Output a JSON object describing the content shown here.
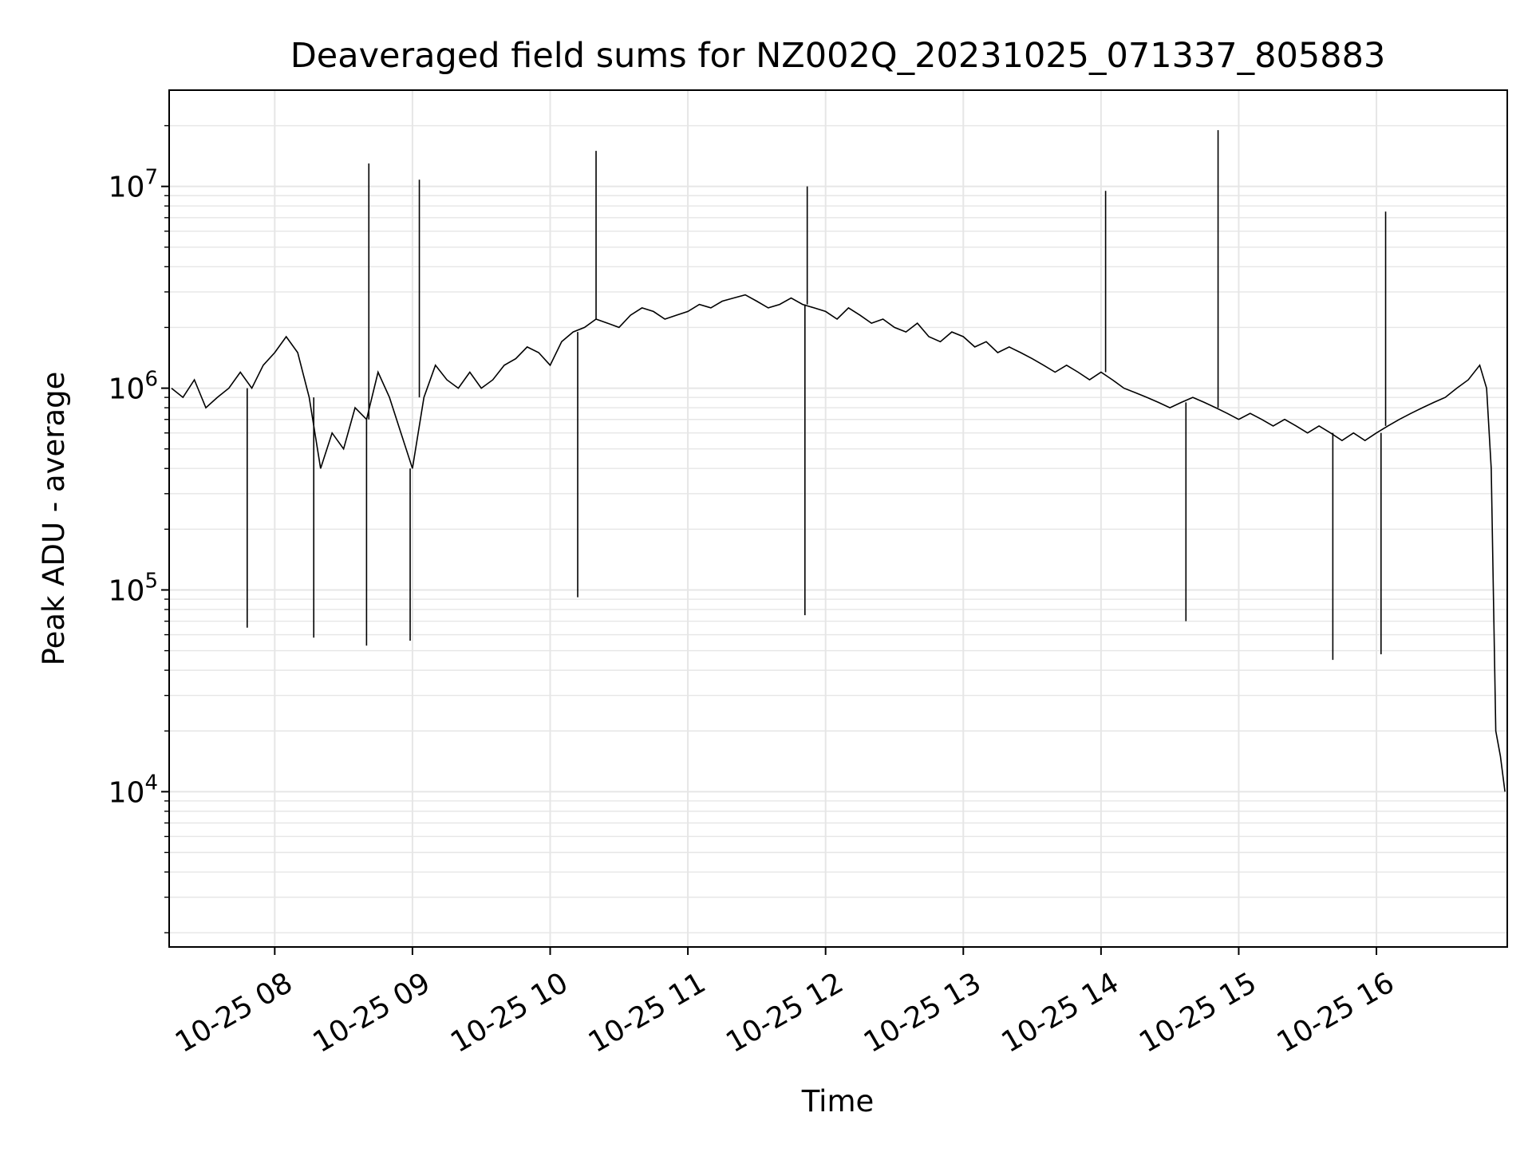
{
  "chart_data": {
    "type": "line",
    "title": "Deaveraged field sums for NZ002Q_20231025_071337_805883",
    "xlabel": "Time",
    "ylabel": "Peak ADU - average",
    "yscale": "log",
    "xlim": [
      "2023-10-25 07:14",
      "2023-10-25 16:57"
    ],
    "ylim": [
      1700,
      30000000
    ],
    "grid": true,
    "legend": "none",
    "line_color": "#000000",
    "grid_color": "#e6e6e6",
    "x_ticks": [
      {
        "time": "2023-10-25 08:00",
        "label": "10-25 08"
      },
      {
        "time": "2023-10-25 09:00",
        "label": "10-25 09"
      },
      {
        "time": "2023-10-25 10:00",
        "label": "10-25 10"
      },
      {
        "time": "2023-10-25 11:00",
        "label": "10-25 11"
      },
      {
        "time": "2023-10-25 12:00",
        "label": "10-25 12"
      },
      {
        "time": "2023-10-25 13:00",
        "label": "10-25 13"
      },
      {
        "time": "2023-10-25 14:00",
        "label": "10-25 14"
      },
      {
        "time": "2023-10-25 15:00",
        "label": "10-25 15"
      },
      {
        "time": "2023-10-25 16:00",
        "label": "10-25 16"
      }
    ],
    "y_ticks": [
      {
        "value": 10000,
        "base": "10",
        "exp": "4"
      },
      {
        "value": 100000,
        "base": "10",
        "exp": "5"
      },
      {
        "value": 1000000,
        "base": "10",
        "exp": "6"
      },
      {
        "value": 10000000,
        "base": "10",
        "exp": "7"
      }
    ],
    "series": [
      {
        "x": [
          "2023-10-25 07:15",
          "2023-10-25 07:20",
          "2023-10-25 07:25",
          "2023-10-25 07:30",
          "2023-10-25 07:35",
          "2023-10-25 07:40",
          "2023-10-25 07:45",
          "2023-10-25 07:50",
          "2023-10-25 07:55",
          "2023-10-25 08:00",
          "2023-10-25 08:05",
          "2023-10-25 08:10",
          "2023-10-25 08:15",
          "2023-10-25 08:20",
          "2023-10-25 08:25",
          "2023-10-25 08:30",
          "2023-10-25 08:35",
          "2023-10-25 08:40",
          "2023-10-25 08:45",
          "2023-10-25 08:50",
          "2023-10-25 08:55",
          "2023-10-25 09:00",
          "2023-10-25 09:05",
          "2023-10-25 09:10",
          "2023-10-25 09:15",
          "2023-10-25 09:20",
          "2023-10-25 09:25",
          "2023-10-25 09:30",
          "2023-10-25 09:35",
          "2023-10-25 09:40",
          "2023-10-25 09:45",
          "2023-10-25 09:50",
          "2023-10-25 09:55",
          "2023-10-25 10:00",
          "2023-10-25 10:05",
          "2023-10-25 10:10",
          "2023-10-25 10:15",
          "2023-10-25 10:20",
          "2023-10-25 10:25",
          "2023-10-25 10:30",
          "2023-10-25 10:35",
          "2023-10-25 10:40",
          "2023-10-25 10:45",
          "2023-10-25 10:50",
          "2023-10-25 10:55",
          "2023-10-25 11:00",
          "2023-10-25 11:05",
          "2023-10-25 11:10",
          "2023-10-25 11:15",
          "2023-10-25 11:20",
          "2023-10-25 11:25",
          "2023-10-25 11:30",
          "2023-10-25 11:35",
          "2023-10-25 11:40",
          "2023-10-25 11:45",
          "2023-10-25 11:50",
          "2023-10-25 11:55",
          "2023-10-25 12:00",
          "2023-10-25 12:05",
          "2023-10-25 12:10",
          "2023-10-25 12:15",
          "2023-10-25 12:20",
          "2023-10-25 12:25",
          "2023-10-25 12:30",
          "2023-10-25 12:35",
          "2023-10-25 12:40",
          "2023-10-25 12:45",
          "2023-10-25 12:50",
          "2023-10-25 12:55",
          "2023-10-25 13:00",
          "2023-10-25 13:05",
          "2023-10-25 13:10",
          "2023-10-25 13:15",
          "2023-10-25 13:20",
          "2023-10-25 13:25",
          "2023-10-25 13:30",
          "2023-10-25 13:35",
          "2023-10-25 13:40",
          "2023-10-25 13:45",
          "2023-10-25 13:50",
          "2023-10-25 13:55",
          "2023-10-25 14:00",
          "2023-10-25 14:05",
          "2023-10-25 14:10",
          "2023-10-25 14:15",
          "2023-10-25 14:20",
          "2023-10-25 14:25",
          "2023-10-25 14:30",
          "2023-10-25 14:35",
          "2023-10-25 14:40",
          "2023-10-25 14:45",
          "2023-10-25 14:50",
          "2023-10-25 14:55",
          "2023-10-25 15:00",
          "2023-10-25 15:05",
          "2023-10-25 15:10",
          "2023-10-25 15:15",
          "2023-10-25 15:20",
          "2023-10-25 15:25",
          "2023-10-25 15:30",
          "2023-10-25 15:35",
          "2023-10-25 15:40",
          "2023-10-25 15:45",
          "2023-10-25 15:50",
          "2023-10-25 15:55",
          "2023-10-25 16:00",
          "2023-10-25 16:05",
          "2023-10-25 16:10",
          "2023-10-25 16:15",
          "2023-10-25 16:20",
          "2023-10-25 16:25",
          "2023-10-25 16:30",
          "2023-10-25 16:35",
          "2023-10-25 16:40",
          "2023-10-25 16:45",
          "2023-10-25 16:48",
          "2023-10-25 16:50",
          "2023-10-25 16:52",
          "2023-10-25 16:54",
          "2023-10-25 16:56"
        ],
        "y": [
          1000000,
          900000,
          1100000,
          800000,
          900000,
          1000000,
          1200000,
          1000000,
          1300000,
          1500000,
          1800000,
          1500000,
          900000,
          400000,
          600000,
          500000,
          800000,
          700000,
          1200000,
          900000,
          600000,
          400000,
          900000,
          1300000,
          1100000,
          1000000,
          1200000,
          1000000,
          1100000,
          1300000,
          1400000,
          1600000,
          1500000,
          1300000,
          1700000,
          1900000,
          2000000,
          2200000,
          2100000,
          2000000,
          2300000,
          2500000,
          2400000,
          2200000,
          2300000,
          2400000,
          2600000,
          2500000,
          2700000,
          2800000,
          2900000,
          2700000,
          2500000,
          2600000,
          2800000,
          2600000,
          2500000,
          2400000,
          2200000,
          2500000,
          2300000,
          2100000,
          2200000,
          2000000,
          1900000,
          2100000,
          1800000,
          1700000,
          1900000,
          1800000,
          1600000,
          1700000,
          1500000,
          1600000,
          1500000,
          1400000,
          1300000,
          1200000,
          1300000,
          1200000,
          1100000,
          1200000,
          1100000,
          1000000,
          950000,
          900000,
          850000,
          800000,
          850000,
          900000,
          850000,
          800000,
          750000,
          700000,
          750000,
          700000,
          650000,
          700000,
          650000,
          600000,
          650000,
          600000,
          550000,
          600000,
          550000,
          600000,
          650000,
          700000,
          750000,
          800000,
          850000,
          900000,
          1000000,
          1100000,
          1300000,
          1000000,
          400000,
          20000,
          15000,
          10000
        ]
      }
    ],
    "spikes_max": [
      {
        "x": "2023-10-25 08:41",
        "y": 13000000
      },
      {
        "x": "2023-10-25 09:03",
        "y": 10800000
      },
      {
        "x": "2023-10-25 10:20",
        "y": 15000000
      },
      {
        "x": "2023-10-25 11:52",
        "y": 10000000
      },
      {
        "x": "2023-10-25 14:02",
        "y": 9500000
      },
      {
        "x": "2023-10-25 14:51",
        "y": 19000000
      },
      {
        "x": "2023-10-25 16:04",
        "y": 7500000
      }
    ],
    "spikes_min": [
      {
        "x": "2023-10-25 07:48",
        "y": 65000
      },
      {
        "x": "2023-10-25 08:17",
        "y": 58000
      },
      {
        "x": "2023-10-25 08:40",
        "y": 53000
      },
      {
        "x": "2023-10-25 08:59",
        "y": 56000
      },
      {
        "x": "2023-10-25 10:12",
        "y": 92000
      },
      {
        "x": "2023-10-25 11:51",
        "y": 75000
      },
      {
        "x": "2023-10-25 14:37",
        "y": 70000
      },
      {
        "x": "2023-10-25 15:41",
        "y": 45000
      },
      {
        "x": "2023-10-25 16:02",
        "y": 48000
      }
    ]
  }
}
